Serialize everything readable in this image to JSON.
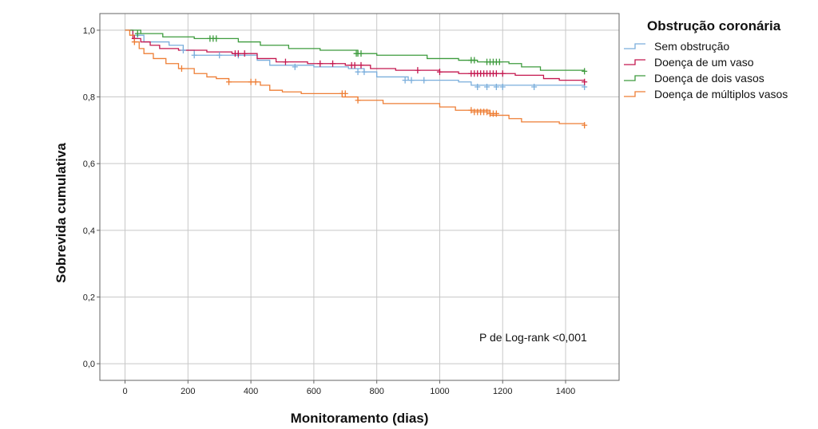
{
  "chart_data": {
    "type": "line",
    "subtype": "kaplan-meier",
    "xlabel": "Monitoramento (dias)",
    "ylabel": "Sobrevida cumulativa",
    "xlim": [
      -80,
      1570
    ],
    "ylim": [
      -0.05,
      1.05
    ],
    "x_ticks": [
      0,
      200,
      400,
      600,
      800,
      1000,
      1200,
      1400
    ],
    "x_tick_labels": [
      "0",
      "200",
      "400",
      "600",
      "800",
      "1000",
      "1200",
      "1400"
    ],
    "y_ticks": [
      0.0,
      0.2,
      0.4,
      0.6,
      0.8,
      1.0
    ],
    "y_tick_labels": [
      "0,0",
      "0,2",
      "0,4",
      "0,6",
      "0,8",
      "1,0"
    ],
    "grid": true,
    "legend": {
      "title": "Obstrução coronária",
      "placement": "top-right, outside plot"
    },
    "annotation": "P de Log-rank <0,001",
    "series": [
      {
        "name": "Sem obstrução",
        "color": "#7aaedc",
        "steps": [
          [
            0,
            1.0
          ],
          [
            25,
            0.985
          ],
          [
            60,
            0.965
          ],
          [
            140,
            0.955
          ],
          [
            185,
            0.94
          ],
          [
            220,
            0.925
          ],
          [
            290,
            0.925
          ],
          [
            420,
            0.91
          ],
          [
            460,
            0.895
          ],
          [
            600,
            0.89
          ],
          [
            710,
            0.885
          ],
          [
            760,
            0.875
          ],
          [
            800,
            0.86
          ],
          [
            830,
            0.86
          ],
          [
            900,
            0.85
          ],
          [
            980,
            0.85
          ],
          [
            1060,
            0.845
          ],
          [
            1100,
            0.835
          ],
          [
            1460,
            0.83
          ]
        ],
        "censored": [
          [
            40,
            0.985
          ],
          [
            185,
            0.94
          ],
          [
            220,
            0.925
          ],
          [
            300,
            0.925
          ],
          [
            360,
            0.925
          ],
          [
            540,
            0.89
          ],
          [
            740,
            0.875
          ],
          [
            760,
            0.875
          ],
          [
            890,
            0.85
          ],
          [
            910,
            0.85
          ],
          [
            950,
            0.85
          ],
          [
            1120,
            0.83
          ],
          [
            1150,
            0.83
          ],
          [
            1180,
            0.83
          ],
          [
            1200,
            0.83
          ],
          [
            1300,
            0.83
          ],
          [
            1460,
            0.83
          ]
        ]
      },
      {
        "name": "Doença de um vaso",
        "color": "#c4174f",
        "steps": [
          [
            0,
            1.0
          ],
          [
            25,
            0.975
          ],
          [
            50,
            0.965
          ],
          [
            80,
            0.955
          ],
          [
            110,
            0.945
          ],
          [
            170,
            0.94
          ],
          [
            260,
            0.935
          ],
          [
            340,
            0.93
          ],
          [
            420,
            0.915
          ],
          [
            480,
            0.905
          ],
          [
            580,
            0.9
          ],
          [
            700,
            0.895
          ],
          [
            780,
            0.885
          ],
          [
            860,
            0.88
          ],
          [
            1000,
            0.875
          ],
          [
            1060,
            0.87
          ],
          [
            1240,
            0.865
          ],
          [
            1330,
            0.855
          ],
          [
            1380,
            0.85
          ],
          [
            1460,
            0.845
          ]
        ],
        "censored": [
          [
            30,
            0.975
          ],
          [
            350,
            0.93
          ],
          [
            360,
            0.93
          ],
          [
            380,
            0.93
          ],
          [
            510,
            0.905
          ],
          [
            620,
            0.9
          ],
          [
            660,
            0.9
          ],
          [
            720,
            0.895
          ],
          [
            730,
            0.895
          ],
          [
            750,
            0.895
          ],
          [
            930,
            0.88
          ],
          [
            1000,
            0.875
          ],
          [
            1100,
            0.87
          ],
          [
            1110,
            0.87
          ],
          [
            1120,
            0.87
          ],
          [
            1130,
            0.87
          ],
          [
            1140,
            0.87
          ],
          [
            1150,
            0.87
          ],
          [
            1160,
            0.87
          ],
          [
            1170,
            0.87
          ],
          [
            1180,
            0.87
          ],
          [
            1200,
            0.87
          ],
          [
            1460,
            0.845
          ]
        ]
      },
      {
        "name": "Doença de dois vasos",
        "color": "#3d9b3d",
        "steps": [
          [
            0,
            1.0
          ],
          [
            50,
            0.99
          ],
          [
            120,
            0.98
          ],
          [
            220,
            0.975
          ],
          [
            360,
            0.965
          ],
          [
            430,
            0.955
          ],
          [
            520,
            0.945
          ],
          [
            620,
            0.94
          ],
          [
            740,
            0.93
          ],
          [
            800,
            0.925
          ],
          [
            960,
            0.915
          ],
          [
            1060,
            0.91
          ],
          [
            1120,
            0.905
          ],
          [
            1220,
            0.9
          ],
          [
            1260,
            0.89
          ],
          [
            1320,
            0.88
          ],
          [
            1460,
            0.877
          ]
        ],
        "censored": [
          [
            40,
            0.99
          ],
          [
            270,
            0.975
          ],
          [
            280,
            0.975
          ],
          [
            290,
            0.975
          ],
          [
            735,
            0.93
          ],
          [
            740,
            0.93
          ],
          [
            750,
            0.93
          ],
          [
            1100,
            0.91
          ],
          [
            1110,
            0.91
          ],
          [
            1150,
            0.905
          ],
          [
            1160,
            0.905
          ],
          [
            1170,
            0.905
          ],
          [
            1180,
            0.905
          ],
          [
            1190,
            0.905
          ],
          [
            1460,
            0.877
          ]
        ]
      },
      {
        "name": "Doença de múltiplos vasos",
        "color": "#ee7e35",
        "steps": [
          [
            0,
            1.0
          ],
          [
            15,
            0.985
          ],
          [
            30,
            0.965
          ],
          [
            45,
            0.945
          ],
          [
            60,
            0.93
          ],
          [
            90,
            0.915
          ],
          [
            130,
            0.9
          ],
          [
            170,
            0.885
          ],
          [
            220,
            0.87
          ],
          [
            260,
            0.86
          ],
          [
            290,
            0.855
          ],
          [
            330,
            0.845
          ],
          [
            430,
            0.835
          ],
          [
            460,
            0.82
          ],
          [
            500,
            0.815
          ],
          [
            560,
            0.81
          ],
          [
            690,
            0.8
          ],
          [
            740,
            0.79
          ],
          [
            820,
            0.78
          ],
          [
            1000,
            0.77
          ],
          [
            1050,
            0.76
          ],
          [
            1160,
            0.745
          ],
          [
            1220,
            0.735
          ],
          [
            1260,
            0.725
          ],
          [
            1380,
            0.72
          ],
          [
            1460,
            0.715
          ]
        ],
        "censored": [
          [
            30,
            0.965
          ],
          [
            180,
            0.885
          ],
          [
            330,
            0.845
          ],
          [
            400,
            0.845
          ],
          [
            415,
            0.845
          ],
          [
            690,
            0.81
          ],
          [
            700,
            0.81
          ],
          [
            740,
            0.79
          ],
          [
            1100,
            0.76
          ],
          [
            1110,
            0.755
          ],
          [
            1120,
            0.755
          ],
          [
            1130,
            0.755
          ],
          [
            1140,
            0.755
          ],
          [
            1150,
            0.755
          ],
          [
            1160,
            0.75
          ],
          [
            1170,
            0.75
          ],
          [
            1180,
            0.75
          ],
          [
            1460,
            0.715
          ]
        ]
      }
    ]
  }
}
